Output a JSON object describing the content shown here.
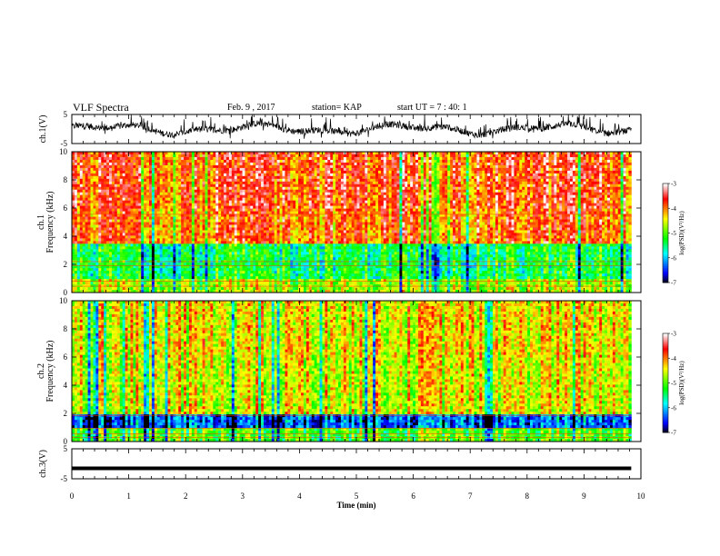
{
  "header": {
    "title": "VLF Spectra",
    "date": "Feb. 9 , 2017",
    "station": "station= KAP",
    "start_ut": "start UT = 7 : 40: 1"
  },
  "chart_data": [
    {
      "type": "line",
      "name": "ch1-waveform",
      "ylabel": "ch.1(V)",
      "ylim": [
        -5,
        5
      ],
      "yticks": [
        "5",
        "-5"
      ],
      "color": "#000000"
    },
    {
      "type": "heatmap",
      "name": "ch1-spectrogram",
      "ylabel": "Frequency (kHz)",
      "ylabel_prefix": "ch.1",
      "ylim": [
        0,
        10
      ],
      "yticks": [
        "0",
        "2",
        "4",
        "6",
        "8",
        "10"
      ],
      "colorbar": {
        "label": "log(PSD)(V²/Hz)",
        "range": [
          -7,
          -3
        ],
        "ticks": [
          "-3",
          "-4",
          "-5",
          "-6",
          "-7"
        ]
      }
    },
    {
      "type": "heatmap",
      "name": "ch2-spectrogram",
      "ylabel": "Frequency (kHz)",
      "ylabel_prefix": "ch.2",
      "ylim": [
        0,
        10
      ],
      "yticks": [
        "0",
        "2",
        "4",
        "6",
        "8",
        "10"
      ],
      "colorbar": {
        "label": "log(PSD)(V²/Hz)",
        "range": [
          -7,
          -3
        ],
        "ticks": [
          "-3",
          "-4",
          "-5",
          "-6",
          "-7"
        ]
      }
    },
    {
      "type": "line",
      "name": "ch3-waveform",
      "ylabel": "ch.3(V)",
      "ylim": [
        -5,
        5
      ],
      "yticks": [
        "5",
        "-5"
      ],
      "values_constant": -1.5,
      "color": "#000000"
    }
  ],
  "xaxis": {
    "label": "Time (min)",
    "xlim": [
      0,
      10
    ],
    "ticks": [
      "0",
      "1",
      "2",
      "3",
      "4",
      "5",
      "6",
      "7",
      "8",
      "9",
      "10"
    ],
    "data_end": 9.83
  },
  "colors": {
    "frame": "#000000",
    "colormap": [
      "#000000",
      "#0000ff",
      "#00ffff",
      "#00ff00",
      "#ffff00",
      "#ff0000",
      "#ffffff"
    ]
  }
}
